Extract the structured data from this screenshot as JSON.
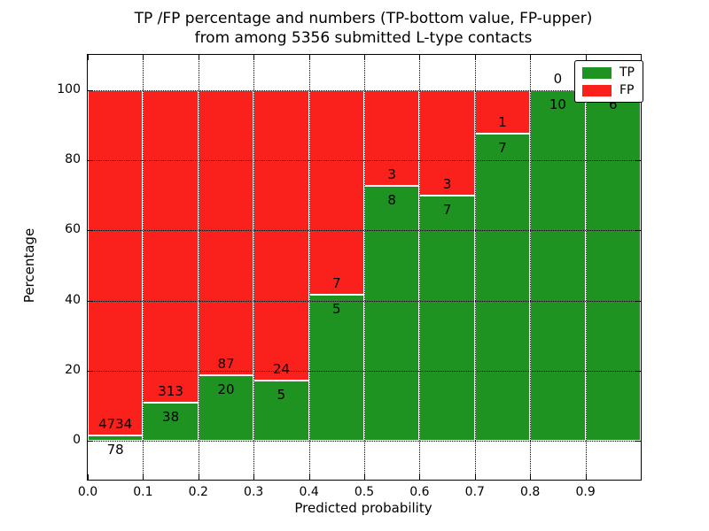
{
  "title": {
    "line1": "TP /FP percentage and numbers (TP-bottom value, FP-upper)",
    "line2": "from among 5356 submitted L-type contacts"
  },
  "chart_data": {
    "type": "bar",
    "stacked": true,
    "normalized": "percent_per_bin",
    "title": "TP /FP percentage and numbers (TP-bottom value, FP-upper) from among 5356 submitted L-type contacts",
    "total_contacts": 5356,
    "xlabel": "Predicted probability",
    "ylabel": "Percentage",
    "xlim": [
      0.0,
      1.0
    ],
    "ylim": [
      -11,
      110
    ],
    "bin_width": 0.1,
    "grid": true,
    "x_ticks": [
      {
        "value": 0.0,
        "label": "0.0"
      },
      {
        "value": 0.1,
        "label": "0.1"
      },
      {
        "value": 0.2,
        "label": "0.2"
      },
      {
        "value": 0.3,
        "label": "0.3"
      },
      {
        "value": 0.4,
        "label": "0.4"
      },
      {
        "value": 0.5,
        "label": "0.5"
      },
      {
        "value": 0.6,
        "label": "0.6"
      },
      {
        "value": 0.7,
        "label": "0.7"
      },
      {
        "value": 0.8,
        "label": "0.8"
      },
      {
        "value": 0.9,
        "label": "0.9"
      }
    ],
    "y_ticks": [
      {
        "value": 0,
        "label": "0"
      },
      {
        "value": 20,
        "label": "20"
      },
      {
        "value": 40,
        "label": "40"
      },
      {
        "value": 60,
        "label": "60"
      },
      {
        "value": 80,
        "label": "80"
      },
      {
        "value": 100,
        "label": "100"
      }
    ],
    "bins": [
      {
        "range": [
          0.0,
          0.1
        ],
        "tp": 78,
        "fp": 4734
      },
      {
        "range": [
          0.1,
          0.2
        ],
        "tp": 38,
        "fp": 313
      },
      {
        "range": [
          0.2,
          0.3
        ],
        "tp": 20,
        "fp": 87
      },
      {
        "range": [
          0.3,
          0.4
        ],
        "tp": 5,
        "fp": 24
      },
      {
        "range": [
          0.4,
          0.5
        ],
        "tp": 5,
        "fp": 7
      },
      {
        "range": [
          0.5,
          0.6
        ],
        "tp": 8,
        "fp": 3
      },
      {
        "range": [
          0.6,
          0.7
        ],
        "tp": 7,
        "fp": 3
      },
      {
        "range": [
          0.7,
          0.8
        ],
        "tp": 7,
        "fp": 1
      },
      {
        "range": [
          0.8,
          0.9
        ],
        "tp": 10,
        "fp": 0
      },
      {
        "range": [
          0.9,
          1.0
        ],
        "tp": 6,
        "fp": 0
      }
    ],
    "series": [
      {
        "name": "TP",
        "color": "#1f9322"
      },
      {
        "name": "FP",
        "color": "#fa211d"
      }
    ],
    "legend": {
      "position": "upper right"
    }
  },
  "colors": {
    "background": "#ffffff",
    "grid": "#000000",
    "bar_edge": "#ffffff",
    "spine": "#000000"
  }
}
